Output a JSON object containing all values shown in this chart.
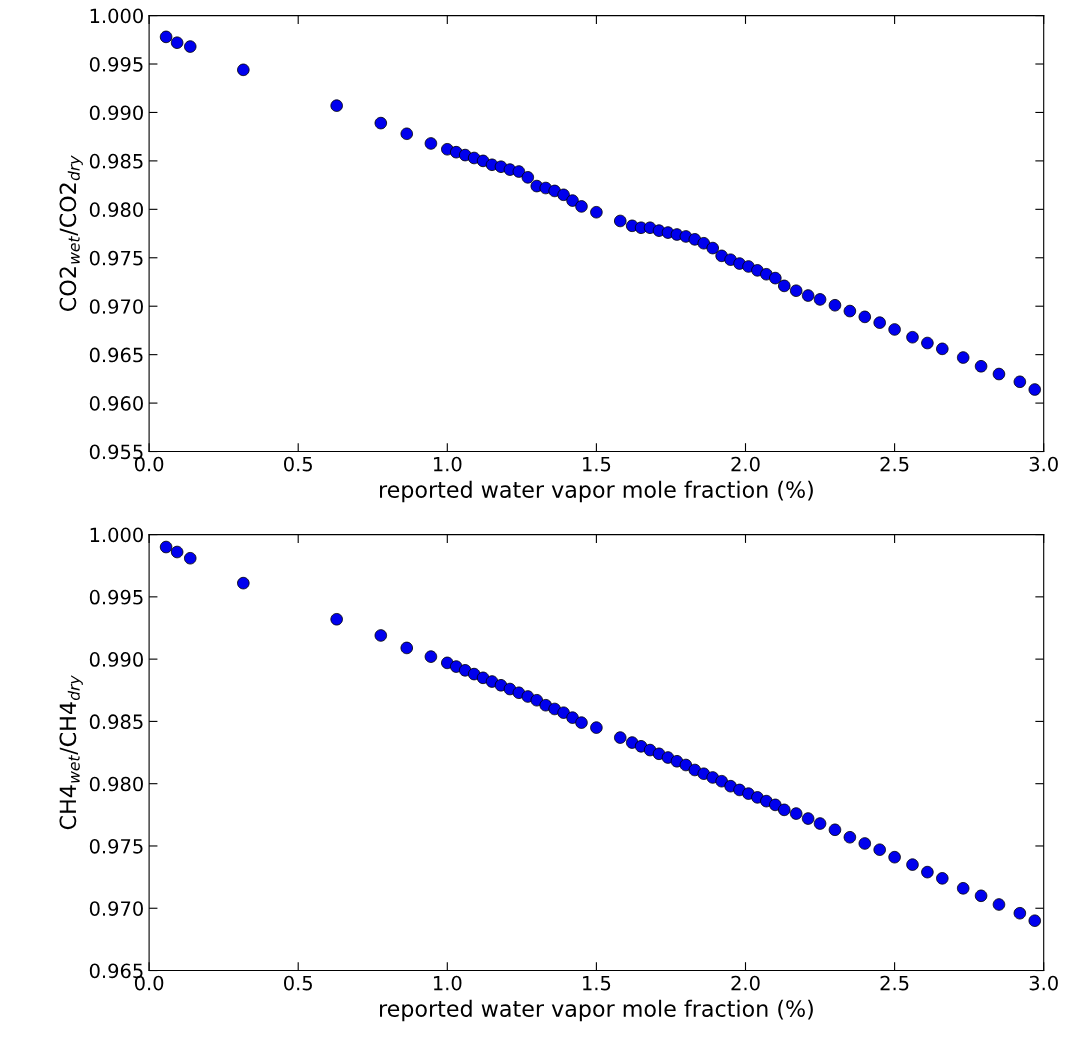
{
  "chart_data": [
    {
      "type": "scatter",
      "xlabel": "reported water vapor mole fraction (%)",
      "ylabel": "CO2$_{wet}$/CO2$_{dry}$",
      "marker": "circle",
      "grid": false,
      "xlim": [
        0.0,
        3.0
      ],
      "xticks": [
        {
          "value": 0,
          "label": "0.0"
        },
        0.5,
        {
          "value": 1,
          "label": "1.0"
        },
        1.5,
        {
          "value": 2,
          "label": "2.0"
        },
        2.5,
        {
          "value": 3,
          "label": "3.0"
        }
      ],
      "ylim": [
        0.955,
        1.0
      ],
      "yticks": [
        0.955,
        {
          "value": 0.96,
          "label": "0.960"
        },
        0.965,
        {
          "value": 0.97,
          "label": "0.970"
        },
        0.975,
        {
          "value": 0.98,
          "label": "0.980"
        },
        0.985,
        {
          "value": 0.99,
          "label": "0.990"
        },
        0.995,
        {
          "value": 1.0,
          "label": "1.000"
        }
      ],
      "series": [
        {
          "color": "#0000ee",
          "x": [
            0.057,
            0.094,
            0.138,
            0.316,
            0.629,
            0.777,
            0.864,
            0.945,
            1.0,
            1.03,
            1.06,
            1.09,
            1.12,
            1.15,
            1.18,
            1.21,
            1.24,
            1.27,
            1.3,
            1.33,
            1.36,
            1.39,
            1.42,
            1.45,
            1.5,
            1.58,
            1.62,
            1.65,
            1.68,
            1.71,
            1.74,
            1.77,
            1.8,
            1.83,
            1.86,
            1.89,
            1.92,
            1.95,
            1.98,
            2.01,
            2.04,
            2.07,
            2.1,
            2.13,
            2.17,
            2.21,
            2.25,
            2.3,
            2.35,
            2.4,
            2.45,
            2.5,
            2.56,
            2.61,
            2.66,
            2.73,
            2.79,
            2.85,
            2.92,
            2.97
          ],
          "values": [
            0.9978,
            0.9972,
            0.9968,
            0.9944,
            0.9907,
            0.9889,
            0.9878,
            0.9868,
            0.9862,
            0.9859,
            0.9856,
            0.9853,
            0.985,
            0.9846,
            0.9844,
            0.9841,
            0.9839,
            0.9833,
            0.9824,
            0.9822,
            0.9819,
            0.9815,
            0.9809,
            0.9803,
            0.9797,
            0.9788,
            0.9783,
            0.9781,
            0.9781,
            0.9778,
            0.9776,
            0.9774,
            0.9772,
            0.9769,
            0.9765,
            0.976,
            0.9752,
            0.9748,
            0.9744,
            0.9741,
            0.9737,
            0.9733,
            0.9729,
            0.9721,
            0.9716,
            0.9711,
            0.9707,
            0.9701,
            0.9695,
            0.9689,
            0.9683,
            0.9676,
            0.9668,
            0.9662,
            0.9656,
            0.9647,
            0.9638,
            0.963,
            0.9622,
            0.9614
          ]
        }
      ]
    },
    {
      "type": "scatter",
      "xlabel": "reported water vapor mole fraction (%)",
      "ylabel": "CH4$_{wet}$/CH4$_{dry}$",
      "marker": "circle",
      "grid": false,
      "xlim": [
        0.0,
        3.0
      ],
      "xticks": [
        {
          "value": 0,
          "label": "0.0"
        },
        0.5,
        {
          "value": 1,
          "label": "1.0"
        },
        1.5,
        {
          "value": 2,
          "label": "2.0"
        },
        2.5,
        {
          "value": 3,
          "label": "3.0"
        }
      ],
      "ylim": [
        0.965,
        1.0
      ],
      "yticks": [
        0.965,
        {
          "value": 0.97,
          "label": "0.970"
        },
        0.975,
        {
          "value": 0.98,
          "label": "0.980"
        },
        0.985,
        {
          "value": 0.99,
          "label": "0.990"
        },
        0.995,
        {
          "value": 1.0,
          "label": "1.000"
        }
      ],
      "series": [
        {
          "color": "#0000ee",
          "x": [
            0.057,
            0.094,
            0.138,
            0.316,
            0.629,
            0.777,
            0.864,
            0.945,
            1.0,
            1.03,
            1.06,
            1.09,
            1.12,
            1.15,
            1.18,
            1.21,
            1.24,
            1.27,
            1.3,
            1.33,
            1.36,
            1.39,
            1.42,
            1.45,
            1.5,
            1.58,
            1.62,
            1.65,
            1.68,
            1.71,
            1.74,
            1.77,
            1.8,
            1.83,
            1.86,
            1.89,
            1.92,
            1.95,
            1.98,
            2.01,
            2.04,
            2.07,
            2.1,
            2.13,
            2.17,
            2.21,
            2.25,
            2.3,
            2.35,
            2.4,
            2.45,
            2.5,
            2.56,
            2.61,
            2.66,
            2.73,
            2.79,
            2.85,
            2.92,
            2.97
          ],
          "values": [
            0.999,
            0.9986,
            0.9981,
            0.9961,
            0.9932,
            0.9919,
            0.9909,
            0.9902,
            0.9897,
            0.9894,
            0.9891,
            0.9888,
            0.9885,
            0.9882,
            0.9879,
            0.9876,
            0.9873,
            0.987,
            0.9867,
            0.9863,
            0.986,
            0.9857,
            0.9853,
            0.9849,
            0.9845,
            0.9837,
            0.9833,
            0.983,
            0.9827,
            0.9824,
            0.9821,
            0.9818,
            0.9815,
            0.9811,
            0.9808,
            0.9805,
            0.9802,
            0.9798,
            0.9795,
            0.9792,
            0.9789,
            0.9786,
            0.9783,
            0.9779,
            0.9776,
            0.9772,
            0.9768,
            0.9763,
            0.9757,
            0.9752,
            0.9747,
            0.9741,
            0.9735,
            0.9729,
            0.9724,
            0.9716,
            0.971,
            0.9703,
            0.9696,
            0.969
          ]
        }
      ]
    }
  ]
}
